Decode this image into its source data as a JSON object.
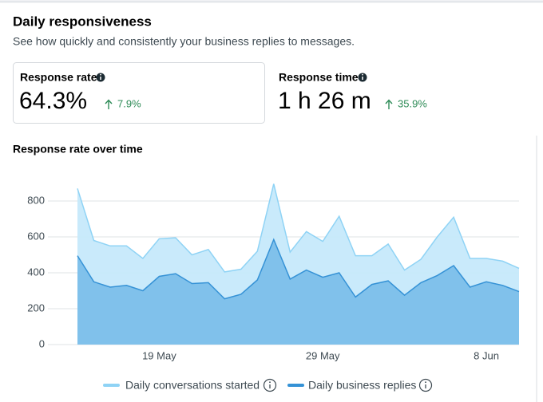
{
  "header": {
    "title": "Daily responsiveness",
    "subtitle": "See how quickly and consistently your business replies to messages."
  },
  "metrics": [
    {
      "label": "Response rate",
      "value": "64.3%",
      "change": "7.9%"
    },
    {
      "label": "Response time",
      "value": "1 h 26 m",
      "change": "35.9%"
    }
  ],
  "chart_data": {
    "type": "area",
    "title": "Response rate over time",
    "categories": [
      null,
      null,
      null,
      null,
      null,
      "19 May",
      null,
      null,
      null,
      null,
      null,
      null,
      null,
      null,
      null,
      "29 May",
      null,
      null,
      null,
      null,
      null,
      null,
      null,
      null,
      null,
      "8 Jun",
      null,
      null
    ],
    "series": [
      {
        "name": "Daily conversations started",
        "color": "#8fd3f5",
        "values": [
          870,
          580,
          550,
          550,
          480,
          590,
          595,
          500,
          530,
          405,
          420,
          520,
          895,
          515,
          630,
          575,
          715,
          495,
          495,
          560,
          415,
          475,
          600,
          710,
          480,
          480,
          465,
          425
        ]
      },
      {
        "name": "Daily business replies",
        "color": "#3592d6",
        "values": [
          495,
          350,
          320,
          330,
          300,
          380,
          395,
          340,
          345,
          255,
          280,
          360,
          585,
          365,
          415,
          375,
          400,
          265,
          335,
          355,
          275,
          345,
          385,
          440,
          320,
          350,
          330,
          295
        ]
      }
    ],
    "ylim": [
      0,
      900
    ],
    "yticks": [
      0,
      200,
      400,
      600,
      800
    ],
    "grid": true
  }
}
